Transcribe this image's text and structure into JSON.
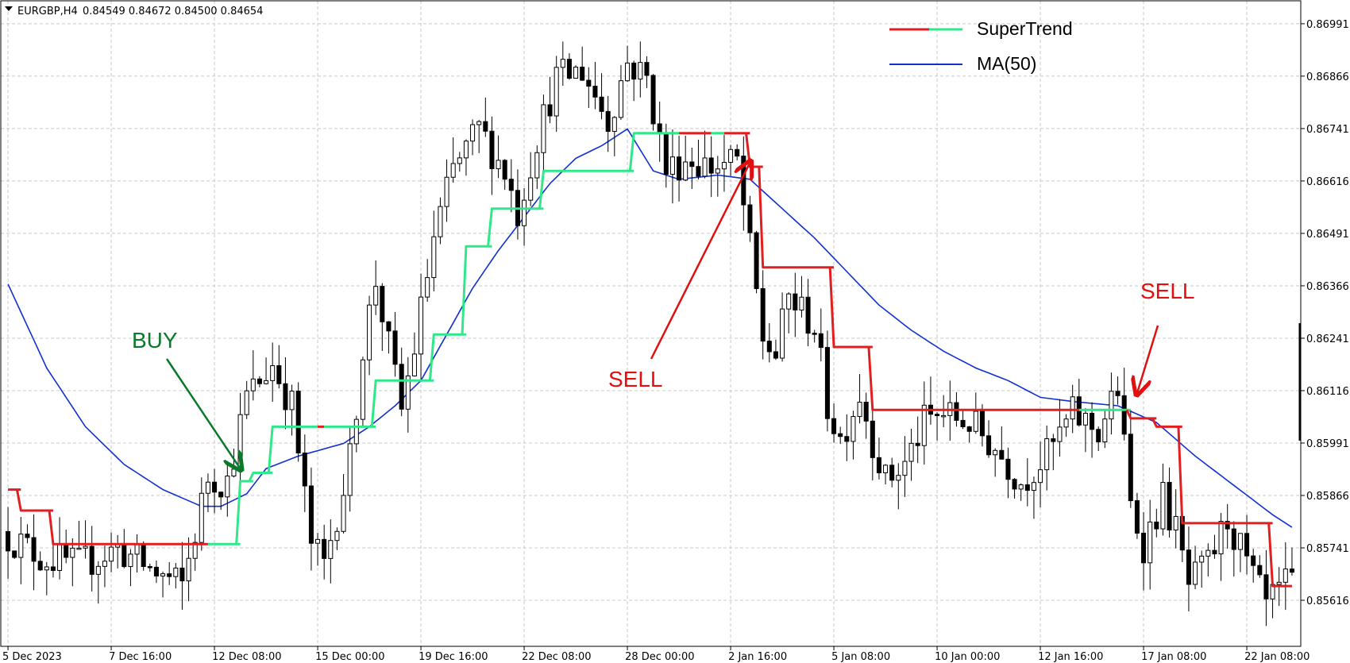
{
  "header": {
    "symbol_label": "EURGBP,H4",
    "ohlc_label": "0.84549 0.84672 0.84500 0.84654"
  },
  "legend": {
    "items": [
      {
        "label": "SuperTrend",
        "colors": [
          "#e02020",
          "#2ee88a"
        ]
      },
      {
        "label": "MA(50)",
        "colors": [
          "#1030d0"
        ]
      }
    ]
  },
  "colors": {
    "supertrend_down": "#e02020",
    "supertrend_up": "#2ee88a",
    "ma": "#1030d0",
    "buy_annotation": "#0a7a2a",
    "sell_annotation": "#e01010",
    "candle": "#000000",
    "grid": "#c8c8c8"
  },
  "chart_data": {
    "type": "candlestick",
    "symbol": "EURGBP",
    "timeframe": "H4",
    "grid": true,
    "ylim": [
      0.8551,
      0.8704
    ],
    "y_ticks": [
      "0.86991",
      "0.86866",
      "0.86741",
      "0.86616",
      "0.86491",
      "0.86366",
      "0.86241",
      "0.86116",
      "0.85991",
      "0.85866",
      "0.85741",
      "0.85616"
    ],
    "x_ticks": [
      "5 Dec 2023",
      "7 Dec 16:00",
      "12 Dec 08:00",
      "15 Dec 00:00",
      "19 Dec 16:00",
      "22 Dec 08:00",
      "28 Dec 00:00",
      "2 Jan 16:00",
      "5 Jan 08:00",
      "10 Jan 00:00",
      "12 Jan 16:00",
      "17 Jan 08:00",
      "22 Jan 08:00"
    ],
    "x_tick_bars": [
      0,
      16,
      32,
      48,
      64,
      80,
      96,
      112,
      128,
      144,
      160,
      176,
      192
    ],
    "bar_count": 200,
    "price_path_anchors": [
      [
        0,
        0.8578
      ],
      [
        6,
        0.8572
      ],
      [
        12,
        0.857
      ],
      [
        18,
        0.8574
      ],
      [
        24,
        0.8568
      ],
      [
        28,
        0.8565
      ],
      [
        32,
        0.8591
      ],
      [
        35,
        0.859
      ],
      [
        38,
        0.861
      ],
      [
        42,
        0.8618
      ],
      [
        45,
        0.8608
      ],
      [
        48,
        0.8575
      ],
      [
        50,
        0.857
      ],
      [
        54,
        0.8595
      ],
      [
        56,
        0.8622
      ],
      [
        58,
        0.8638
      ],
      [
        60,
        0.8622
      ],
      [
        62,
        0.8607
      ],
      [
        64,
        0.8622
      ],
      [
        67,
        0.8648
      ],
      [
        70,
        0.8664
      ],
      [
        74,
        0.8674
      ],
      [
        78,
        0.8664
      ],
      [
        80,
        0.8654
      ],
      [
        83,
        0.8672
      ],
      [
        86,
        0.8686
      ],
      [
        90,
        0.8688
      ],
      [
        94,
        0.8676
      ],
      [
        97,
        0.869
      ],
      [
        100,
        0.8686
      ],
      [
        103,
        0.8664
      ],
      [
        106,
        0.8667
      ],
      [
        110,
        0.8665
      ],
      [
        114,
        0.8666
      ],
      [
        116,
        0.8645
      ],
      [
        118,
        0.8624
      ],
      [
        120,
        0.862
      ],
      [
        122,
        0.8634
      ],
      [
        126,
        0.8627
      ],
      [
        128,
        0.8608
      ],
      [
        130,
        0.86
      ],
      [
        133,
        0.8611
      ],
      [
        135,
        0.86
      ],
      [
        137,
        0.859
      ],
      [
        140,
        0.8594
      ],
      [
        143,
        0.8604
      ],
      [
        146,
        0.8606
      ],
      [
        150,
        0.8604
      ],
      [
        154,
        0.8598
      ],
      [
        158,
        0.859
      ],
      [
        162,
        0.8596
      ],
      [
        166,
        0.8606
      ],
      [
        170,
        0.8602
      ],
      [
        173,
        0.8612
      ],
      [
        175,
        0.8584
      ],
      [
        177,
        0.8575
      ],
      [
        180,
        0.8586
      ],
      [
        182,
        0.8578
      ],
      [
        184,
        0.8565
      ],
      [
        187,
        0.857
      ],
      [
        190,
        0.8581
      ],
      [
        193,
        0.857
      ],
      [
        196,
        0.856
      ],
      [
        199,
        0.8565
      ]
    ],
    "supertrend": [
      {
        "from_bar": 0,
        "to_bar": 2,
        "value": 0.8588,
        "trend": "down"
      },
      {
        "from_bar": 2,
        "to_bar": 7,
        "value": 0.8583,
        "trend": "down"
      },
      {
        "from_bar": 7,
        "to_bar": 31,
        "value": 0.8575,
        "trend": "down"
      },
      {
        "from_bar": 31,
        "to_bar": 36,
        "value": 0.8575,
        "trend": "up"
      },
      {
        "from_bar": 36,
        "to_bar": 38,
        "value": 0.859,
        "trend": "up"
      },
      {
        "from_bar": 38,
        "to_bar": 41,
        "value": 0.8592,
        "trend": "up"
      },
      {
        "from_bar": 41,
        "to_bar": 48,
        "value": 0.8603,
        "trend": "up"
      },
      {
        "from_bar": 48,
        "to_bar": 49,
        "value": 0.8603,
        "trend": "down"
      },
      {
        "from_bar": 49,
        "to_bar": 57,
        "value": 0.8603,
        "trend": "up"
      },
      {
        "from_bar": 57,
        "to_bar": 66,
        "value": 0.8614,
        "trend": "up"
      },
      {
        "from_bar": 66,
        "to_bar": 71,
        "value": 0.8625,
        "trend": "up"
      },
      {
        "from_bar": 71,
        "to_bar": 75,
        "value": 0.8646,
        "trend": "up"
      },
      {
        "from_bar": 75,
        "to_bar": 83,
        "value": 0.8655,
        "trend": "up"
      },
      {
        "from_bar": 83,
        "to_bar": 97,
        "value": 0.8664,
        "trend": "up"
      },
      {
        "from_bar": 97,
        "to_bar": 104,
        "value": 0.8673,
        "trend": "up"
      },
      {
        "from_bar": 104,
        "to_bar": 109,
        "value": 0.8673,
        "trend": "down"
      },
      {
        "from_bar": 109,
        "to_bar": 111,
        "value": 0.8673,
        "trend": "up"
      },
      {
        "from_bar": 111,
        "to_bar": 115,
        "value": 0.8673,
        "trend": "down"
      },
      {
        "from_bar": 115,
        "to_bar": 117,
        "value": 0.8665,
        "trend": "down"
      },
      {
        "from_bar": 117,
        "to_bar": 128,
        "value": 0.8641,
        "trend": "down"
      },
      {
        "from_bar": 128,
        "to_bar": 134,
        "value": 0.8622,
        "trend": "down"
      },
      {
        "from_bar": 134,
        "to_bar": 166,
        "value": 0.8607,
        "trend": "down"
      },
      {
        "from_bar": 166,
        "to_bar": 174,
        "value": 0.8607,
        "trend": "up"
      },
      {
        "from_bar": 174,
        "to_bar": 178,
        "value": 0.8605,
        "trend": "down"
      },
      {
        "from_bar": 178,
        "to_bar": 182,
        "value": 0.8603,
        "trend": "down"
      },
      {
        "from_bar": 182,
        "to_bar": 192,
        "value": 0.858,
        "trend": "down"
      },
      {
        "from_bar": 192,
        "to_bar": 196,
        "value": 0.858,
        "trend": "down"
      },
      {
        "from_bar": 196,
        "to_bar": 199,
        "value": 0.8565,
        "trend": "down"
      }
    ],
    "ma50_anchors": [
      [
        0,
        0.8637
      ],
      [
        6,
        0.8617
      ],
      [
        12,
        0.8603
      ],
      [
        18,
        0.8594
      ],
      [
        24,
        0.8588
      ],
      [
        30,
        0.8584
      ],
      [
        33,
        0.8584
      ],
      [
        37,
        0.8587
      ],
      [
        40,
        0.8593
      ],
      [
        45,
        0.8596
      ],
      [
        52,
        0.8599
      ],
      [
        56,
        0.8603
      ],
      [
        60,
        0.8608
      ],
      [
        64,
        0.8614
      ],
      [
        68,
        0.8625
      ],
      [
        72,
        0.8636
      ],
      [
        76,
        0.8645
      ],
      [
        80,
        0.8653
      ],
      [
        84,
        0.8661
      ],
      [
        88,
        0.8667
      ],
      [
        92,
        0.867
      ],
      [
        96,
        0.8674
      ],
      [
        100,
        0.8664
      ],
      [
        104,
        0.8662
      ],
      [
        110,
        0.8663
      ],
      [
        115,
        0.8662
      ],
      [
        120,
        0.8655
      ],
      [
        125,
        0.8648
      ],
      [
        130,
        0.864
      ],
      [
        135,
        0.8632
      ],
      [
        140,
        0.8626
      ],
      [
        145,
        0.8621
      ],
      [
        150,
        0.8617
      ],
      [
        155,
        0.8614
      ],
      [
        160,
        0.861
      ],
      [
        165,
        0.8609
      ],
      [
        172,
        0.8608
      ],
      [
        178,
        0.8604
      ],
      [
        184,
        0.8596
      ],
      [
        190,
        0.8589
      ],
      [
        196,
        0.8582
      ],
      [
        199,
        0.8579
      ]
    ],
    "annotations": [
      {
        "text": "BUY",
        "color": "buy",
        "arrow_to_bar": 36,
        "arrow_to_price": 0.8593
      },
      {
        "text": "SELL",
        "color": "sell",
        "arrow_to_bar": 115,
        "arrow_to_price": 0.8666
      },
      {
        "text": "SELL",
        "color": "sell",
        "arrow_to_bar": 175,
        "arrow_to_price": 0.8611
      }
    ]
  }
}
